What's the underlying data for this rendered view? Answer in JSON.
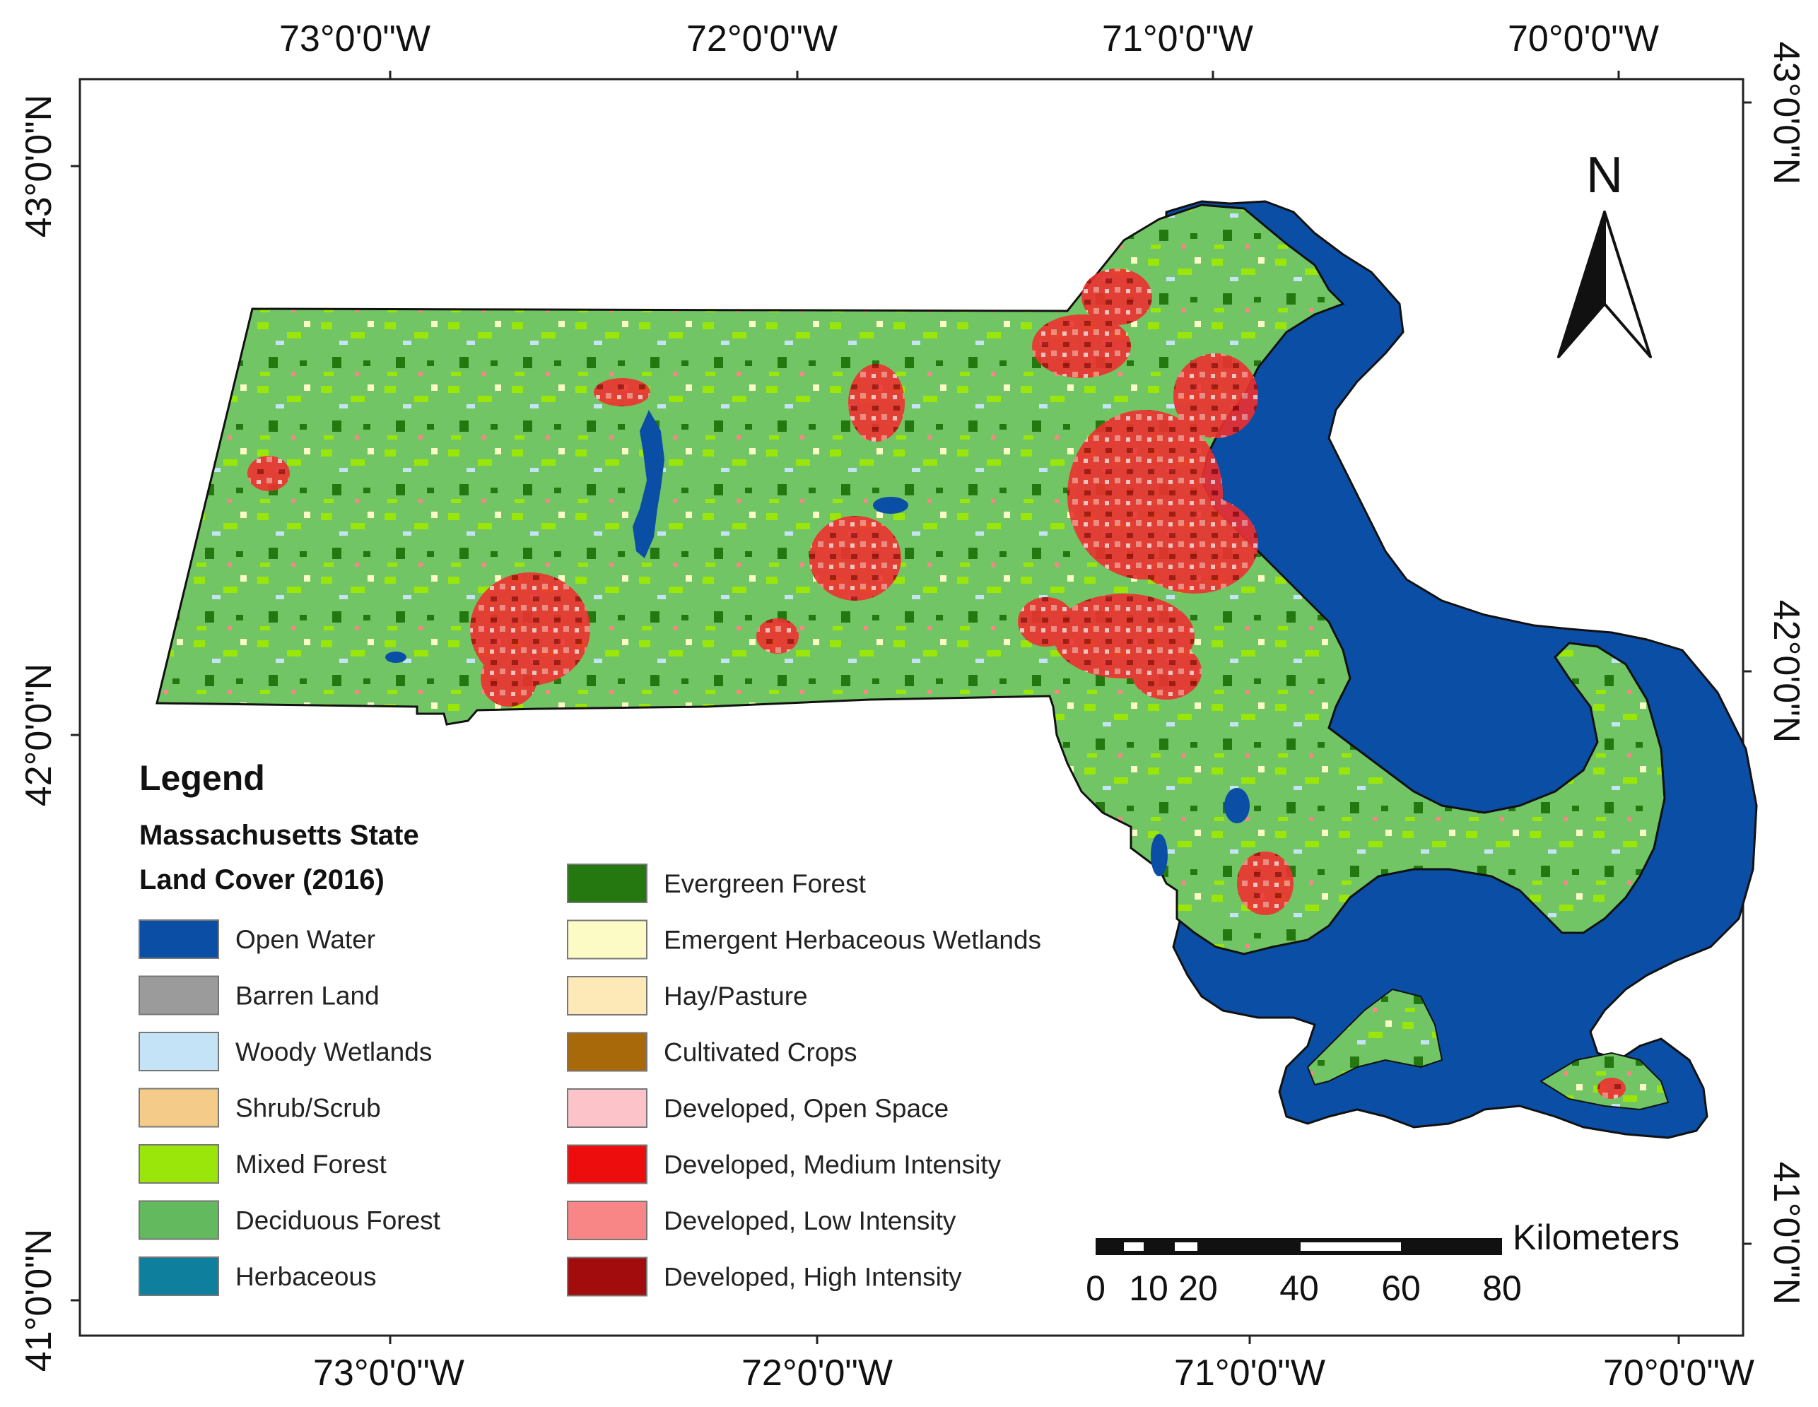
{
  "map": {
    "top_longitudes": [
      "73°0'0\"W",
      "72°0'0\"W",
      "71°0'0\"W",
      "70°0'0\"W"
    ],
    "bottom_longitudes": [
      "73°0'0\"W",
      "72°0'0\"W",
      "71°0'0\"W",
      "70°0'0\"W"
    ],
    "left_latitudes": [
      "43°0'0\"N",
      "42°0'0\"N",
      "41°0'0\"N"
    ],
    "right_latitudes": [
      "43°0'0\"N",
      "42°0'0\"N",
      "41°0'0\"N"
    ],
    "north_label": "N"
  },
  "legend": {
    "title": "Legend",
    "subtitle_line1": "Massachusetts State",
    "subtitle_line2": "Land Cover (2016)",
    "items": [
      {
        "label": "Open Water",
        "color": "#0a4ea6"
      },
      {
        "label": "Barren Land",
        "color": "#9b9b9b"
      },
      {
        "label": "Woody Wetlands",
        "color": "#c5e3f7"
      },
      {
        "label": "Shrub/Scrub",
        "color": "#f5cb8a"
      },
      {
        "label": "Mixed Forest",
        "color": "#9be60a"
      },
      {
        "label": "Deciduous Forest",
        "color": "#63ba5e"
      },
      {
        "label": "Herbaceous",
        "color": "#0f7f9e"
      },
      {
        "label": "Evergreen Forest",
        "color": "#25780f"
      },
      {
        "label": "Emergent Herbaceous Wetlands",
        "color": "#fcfbc6"
      },
      {
        "label": "Hay/Pasture",
        "color": "#fde8b8"
      },
      {
        "label": "Cultivated Crops",
        "color": "#a8690a"
      },
      {
        "label": "Developed, Open Space",
        "color": "#fcc3c9"
      },
      {
        "label": "Developed, Medium Intensity",
        "color": "#ee0d0d"
      },
      {
        "label": "Developed, Low Intensity",
        "color": "#f88686"
      },
      {
        "label": "Developed, High Intensity",
        "color": "#a20c0c"
      }
    ]
  },
  "scale_bar": {
    "unit": "Kilometers",
    "ticks": [
      "0",
      "10",
      "20",
      "40",
      "60",
      "80"
    ]
  }
}
